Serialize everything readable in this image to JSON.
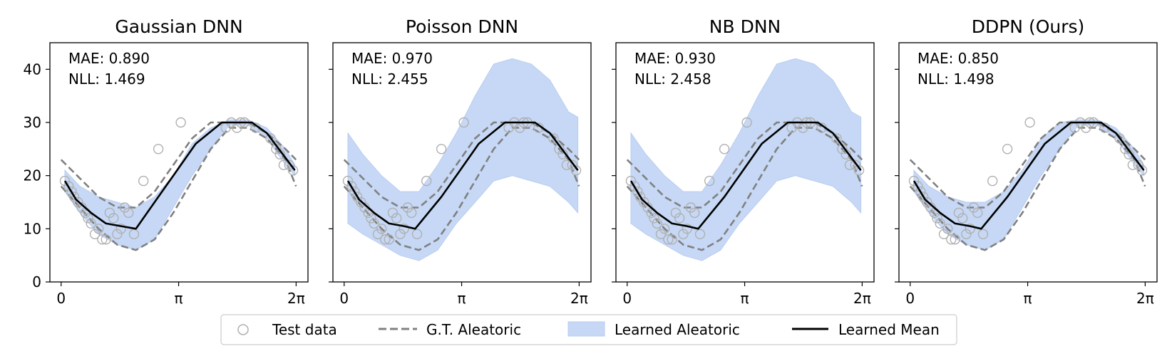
{
  "x_ticks": [
    "0",
    "π",
    "2π"
  ],
  "y_ticks": [
    "0",
    "10",
    "20",
    "30",
    "40"
  ],
  "colors": {
    "band": "#c6d8f5",
    "band_edge": "#b9cdf0",
    "gt": "#808080",
    "mean": "#000000",
    "point": "#b0b0b0"
  },
  "legend": {
    "test": "Test data",
    "gt": "G.T. Aleatoric",
    "learned_aleatoric": "Learned Aleatoric",
    "mean": "Learned Mean"
  },
  "test_points": {
    "x": [
      0.1,
      0.2,
      0.28,
      0.35,
      0.45,
      0.55,
      0.65,
      0.72,
      0.8,
      0.9,
      1.0,
      1.1,
      1.2,
      1.3,
      1.4,
      1.5,
      1.6,
      1.7,
      1.8,
      1.95,
      2.2,
      2.6,
      3.2,
      4.4,
      4.55,
      4.7,
      4.8,
      4.9,
      5.2,
      5.6,
      5.75,
      5.85,
      5.95,
      6.1,
      6.2
    ],
    "y": [
      19,
      18,
      17,
      16,
      15,
      14,
      13,
      12,
      11,
      9,
      10,
      8,
      8,
      13,
      12,
      9,
      10,
      14,
      13,
      9,
      19,
      25,
      30,
      29,
      30,
      29,
      30,
      30,
      29,
      27,
      25,
      24,
      22,
      22,
      21
    ]
  },
  "gt_bounds": {
    "x": [
      0.0,
      0.5,
      1.0,
      1.5,
      2.0,
      2.5,
      3.0,
      3.5,
      4.0,
      4.5,
      5.0,
      5.5,
      6.0,
      6.28
    ],
    "upper": [
      23,
      19.5,
      16,
      14,
      14,
      17,
      22,
      27,
      30,
      30,
      30,
      28,
      25,
      23
    ],
    "lower": [
      18,
      14,
      10,
      7,
      6,
      8,
      13,
      19,
      25,
      29,
      29,
      27,
      23,
      18
    ]
  },
  "chart_data": [
    {
      "type": "line",
      "title": "Gaussian DNN",
      "annotation": {
        "mae": "MAE: 0.890",
        "nll": "NLL: 1.469"
      },
      "xlim": [
        -0.3,
        6.6
      ],
      "ylim": [
        0,
        45
      ],
      "mean": {
        "x": [
          0.1,
          0.4,
          0.8,
          1.2,
          1.6,
          2.0,
          2.6,
          3.0,
          3.6,
          4.3,
          5.1,
          5.5,
          6.25
        ],
        "y": [
          19,
          15.5,
          13,
          11,
          10.5,
          10,
          16,
          20,
          26,
          30,
          30,
          28,
          21
        ]
      },
      "band": {
        "x": [
          0.1,
          0.5,
          1.0,
          1.5,
          2.0,
          2.5,
          3.0,
          3.5,
          4.0,
          4.5,
          5.0,
          5.5,
          6.0,
          6.25
        ],
        "upper": [
          21,
          18,
          16,
          15,
          14,
          16,
          20,
          26,
          29,
          30.5,
          30.5,
          29,
          25,
          22
        ],
        "lower": [
          17,
          13,
          9,
          7,
          6,
          8,
          14,
          20,
          25,
          29.5,
          29.5,
          27,
          22,
          20
        ]
      }
    },
    {
      "type": "line",
      "title": "Poisson DNN",
      "annotation": {
        "mae": "MAE: 0.970",
        "nll": "NLL: 2.455"
      },
      "xlim": [
        -0.3,
        6.6
      ],
      "ylim": [
        0,
        45
      ],
      "mean": {
        "x": [
          0.1,
          0.4,
          0.8,
          1.2,
          1.6,
          1.9,
          2.6,
          3.0,
          3.6,
          4.3,
          5.1,
          5.5,
          6.25
        ],
        "y": [
          19,
          15.5,
          13,
          11,
          10.5,
          10,
          16,
          20,
          26,
          30,
          30,
          28,
          21
        ]
      },
      "band": {
        "x": [
          0.1,
          0.5,
          1.0,
          1.5,
          2.0,
          2.5,
          3.0,
          3.5,
          4.0,
          4.5,
          5.0,
          5.5,
          6.0,
          6.25
        ],
        "upper": [
          28,
          24,
          20,
          17,
          17,
          22,
          28,
          35,
          41,
          42,
          41,
          38,
          32,
          31
        ],
        "lower": [
          11,
          9,
          7,
          5,
          4,
          6,
          11,
          15,
          19,
          20,
          19,
          18,
          15,
          13
        ]
      }
    },
    {
      "type": "line",
      "title": "NB DNN",
      "annotation": {
        "mae": "MAE: 0.930",
        "nll": "NLL: 2.458"
      },
      "xlim": [
        -0.3,
        6.6
      ],
      "ylim": [
        0,
        45
      ],
      "mean": {
        "x": [
          0.1,
          0.4,
          0.8,
          1.2,
          1.6,
          1.9,
          2.6,
          3.0,
          3.6,
          4.3,
          5.1,
          5.5,
          6.25
        ],
        "y": [
          19,
          15.5,
          13,
          11,
          10.5,
          10,
          16,
          20,
          26,
          30,
          30,
          28,
          21
        ]
      },
      "band": {
        "x": [
          0.1,
          0.5,
          1.0,
          1.5,
          2.0,
          2.5,
          3.0,
          3.5,
          4.0,
          4.5,
          5.0,
          5.5,
          6.0,
          6.25
        ],
        "upper": [
          28,
          24,
          20,
          17,
          17,
          22,
          28,
          35,
          41,
          42,
          41,
          38,
          32,
          31
        ],
        "lower": [
          11,
          9,
          7,
          5,
          4,
          6,
          11,
          15,
          19,
          20,
          19,
          18,
          15,
          13
        ]
      }
    },
    {
      "type": "line",
      "title": "DDPN (Ours)",
      "annotation": {
        "mae": "MAE: 0.850",
        "nll": "NLL: 1.498"
      },
      "xlim": [
        -0.3,
        6.6
      ],
      "ylim": [
        0,
        45
      ],
      "mean": {
        "x": [
          0.1,
          0.4,
          0.8,
          1.2,
          1.6,
          1.9,
          2.6,
          3.0,
          3.6,
          4.3,
          5.1,
          5.5,
          6.25
        ],
        "y": [
          19,
          15.5,
          13,
          11,
          10.5,
          10,
          16,
          20,
          26,
          30,
          30,
          28,
          21
        ]
      },
      "band": {
        "x": [
          0.1,
          0.5,
          1.0,
          1.5,
          2.0,
          2.5,
          3.0,
          3.5,
          4.0,
          4.5,
          5.0,
          5.5,
          6.0,
          6.25
        ],
        "upper": [
          21,
          18,
          16,
          15,
          15,
          17,
          21,
          27,
          30,
          30.5,
          30.5,
          29,
          25,
          22
        ],
        "lower": [
          17,
          13,
          9,
          7,
          6,
          8,
          14,
          20,
          25,
          29.5,
          29.5,
          27,
          22,
          20
        ]
      }
    }
  ]
}
